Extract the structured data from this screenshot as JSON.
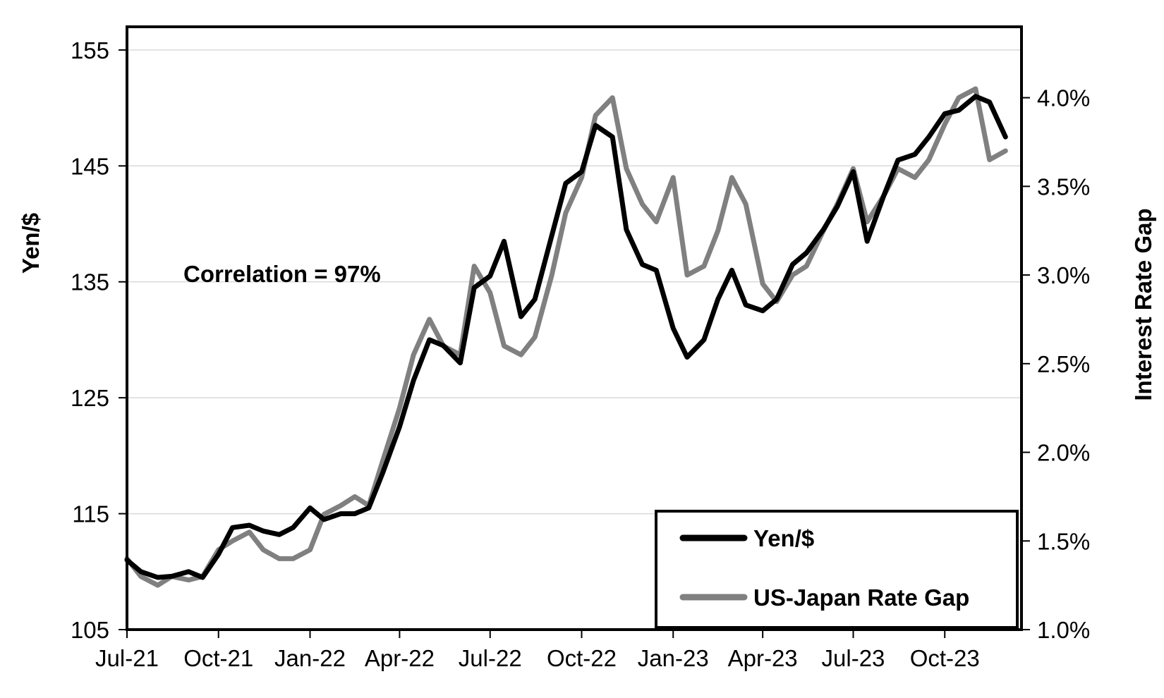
{
  "chart_data": {
    "type": "line",
    "xlabel": "",
    "ylabel_left": "Yen/$",
    "ylabel_right": "Interest Rate Gap",
    "annotation": "Correlation = 97%",
    "legend_position": "bottom-right",
    "grid": true,
    "x_ticks": [
      "Jul-21",
      "Oct-21",
      "Jan-22",
      "Apr-22",
      "Jul-22",
      "Oct-22",
      "Jan-23",
      "Apr-23",
      "Jul-23",
      "Oct-23"
    ],
    "y_left": {
      "min": 105,
      "max": 157,
      "ticks": [
        "105",
        "115",
        "125",
        "135",
        "145",
        "155"
      ]
    },
    "y_right": {
      "min": 1.0,
      "max": 4.4,
      "ticks": [
        "1.0%",
        "1.5%",
        "2.0%",
        "2.5%",
        "3.0%",
        "3.5%",
        "4.0%"
      ]
    },
    "series": [
      {
        "name": "Yen/$",
        "axis": "left",
        "color": "#000000",
        "points": [
          [
            "2021-07-01",
            111.0
          ],
          [
            "2021-07-15",
            110.0
          ],
          [
            "2021-08-01",
            109.5
          ],
          [
            "2021-08-15",
            109.6
          ],
          [
            "2021-09-01",
            110.0
          ],
          [
            "2021-09-15",
            109.5
          ],
          [
            "2021-10-01",
            111.5
          ],
          [
            "2021-10-15",
            113.8
          ],
          [
            "2021-11-01",
            114.0
          ],
          [
            "2021-11-15",
            113.5
          ],
          [
            "2021-12-01",
            113.2
          ],
          [
            "2021-12-15",
            113.8
          ],
          [
            "2022-01-01",
            115.5
          ],
          [
            "2022-01-15",
            114.5
          ],
          [
            "2022-02-01",
            115.0
          ],
          [
            "2022-02-15",
            115.0
          ],
          [
            "2022-03-01",
            115.5
          ],
          [
            "2022-03-15",
            118.5
          ],
          [
            "2022-04-01",
            122.5
          ],
          [
            "2022-04-15",
            126.5
          ],
          [
            "2022-05-01",
            130.0
          ],
          [
            "2022-05-15",
            129.5
          ],
          [
            "2022-06-01",
            128.0
          ],
          [
            "2022-06-15",
            134.5
          ],
          [
            "2022-07-01",
            135.5
          ],
          [
            "2022-07-15",
            138.5
          ],
          [
            "2022-08-01",
            132.0
          ],
          [
            "2022-08-15",
            133.5
          ],
          [
            "2022-09-01",
            139.0
          ],
          [
            "2022-09-15",
            143.5
          ],
          [
            "2022-10-01",
            144.5
          ],
          [
            "2022-10-15",
            148.5
          ],
          [
            "2022-11-01",
            147.5
          ],
          [
            "2022-11-15",
            139.5
          ],
          [
            "2022-12-01",
            136.5
          ],
          [
            "2022-12-15",
            136.0
          ],
          [
            "2023-01-01",
            131.0
          ],
          [
            "2023-01-15",
            128.5
          ],
          [
            "2023-02-01",
            130.0
          ],
          [
            "2023-02-15",
            133.5
          ],
          [
            "2023-03-01",
            136.0
          ],
          [
            "2023-03-15",
            133.0
          ],
          [
            "2023-04-01",
            132.5
          ],
          [
            "2023-04-15",
            133.5
          ],
          [
            "2023-05-01",
            136.5
          ],
          [
            "2023-05-15",
            137.5
          ],
          [
            "2023-06-01",
            139.5
          ],
          [
            "2023-06-15",
            141.5
          ],
          [
            "2023-07-01",
            144.5
          ],
          [
            "2023-07-15",
            138.5
          ],
          [
            "2023-08-01",
            142.5
          ],
          [
            "2023-08-15",
            145.5
          ],
          [
            "2023-09-01",
            146.0
          ],
          [
            "2023-09-15",
            147.5
          ],
          [
            "2023-10-01",
            149.5
          ],
          [
            "2023-10-15",
            149.8
          ],
          [
            "2023-11-01",
            151.0
          ],
          [
            "2023-11-15",
            150.5
          ],
          [
            "2023-12-01",
            147.5
          ]
        ]
      },
      {
        "name": "US-Japan Rate Gap",
        "axis": "right",
        "color": "#808080",
        "points": [
          [
            "2021-07-01",
            1.4
          ],
          [
            "2021-07-15",
            1.3
          ],
          [
            "2021-08-01",
            1.25
          ],
          [
            "2021-08-15",
            1.3
          ],
          [
            "2021-09-01",
            1.28
          ],
          [
            "2021-09-15",
            1.3
          ],
          [
            "2021-10-01",
            1.45
          ],
          [
            "2021-10-15",
            1.5
          ],
          [
            "2021-11-01",
            1.55
          ],
          [
            "2021-11-15",
            1.45
          ],
          [
            "2021-12-01",
            1.4
          ],
          [
            "2021-12-15",
            1.4
          ],
          [
            "2022-01-01",
            1.45
          ],
          [
            "2022-01-15",
            1.65
          ],
          [
            "2022-02-01",
            1.7
          ],
          [
            "2022-02-15",
            1.75
          ],
          [
            "2022-03-01",
            1.7
          ],
          [
            "2022-03-15",
            1.95
          ],
          [
            "2022-04-01",
            2.25
          ],
          [
            "2022-04-15",
            2.55
          ],
          [
            "2022-05-01",
            2.75
          ],
          [
            "2022-05-15",
            2.6
          ],
          [
            "2022-06-01",
            2.55
          ],
          [
            "2022-06-15",
            3.05
          ],
          [
            "2022-07-01",
            2.9
          ],
          [
            "2022-07-15",
            2.6
          ],
          [
            "2022-08-01",
            2.55
          ],
          [
            "2022-08-15",
            2.65
          ],
          [
            "2022-09-01",
            3.0
          ],
          [
            "2022-09-15",
            3.35
          ],
          [
            "2022-10-01",
            3.55
          ],
          [
            "2022-10-15",
            3.9
          ],
          [
            "2022-11-01",
            4.0
          ],
          [
            "2022-11-15",
            3.6
          ],
          [
            "2022-12-01",
            3.4
          ],
          [
            "2022-12-15",
            3.3
          ],
          [
            "2023-01-01",
            3.55
          ],
          [
            "2023-01-15",
            3.0
          ],
          [
            "2023-02-01",
            3.05
          ],
          [
            "2023-02-15",
            3.25
          ],
          [
            "2023-03-01",
            3.55
          ],
          [
            "2023-03-15",
            3.4
          ],
          [
            "2023-04-01",
            2.95
          ],
          [
            "2023-04-15",
            2.85
          ],
          [
            "2023-05-01",
            3.0
          ],
          [
            "2023-05-15",
            3.05
          ],
          [
            "2023-06-01",
            3.25
          ],
          [
            "2023-06-15",
            3.4
          ],
          [
            "2023-07-01",
            3.6
          ],
          [
            "2023-07-15",
            3.3
          ],
          [
            "2023-08-01",
            3.45
          ],
          [
            "2023-08-15",
            3.6
          ],
          [
            "2023-09-01",
            3.55
          ],
          [
            "2023-09-15",
            3.65
          ],
          [
            "2023-10-01",
            3.85
          ],
          [
            "2023-10-15",
            4.0
          ],
          [
            "2023-11-01",
            4.05
          ],
          [
            "2023-11-15",
            3.65
          ],
          [
            "2023-12-01",
            3.7
          ]
        ]
      }
    ]
  }
}
